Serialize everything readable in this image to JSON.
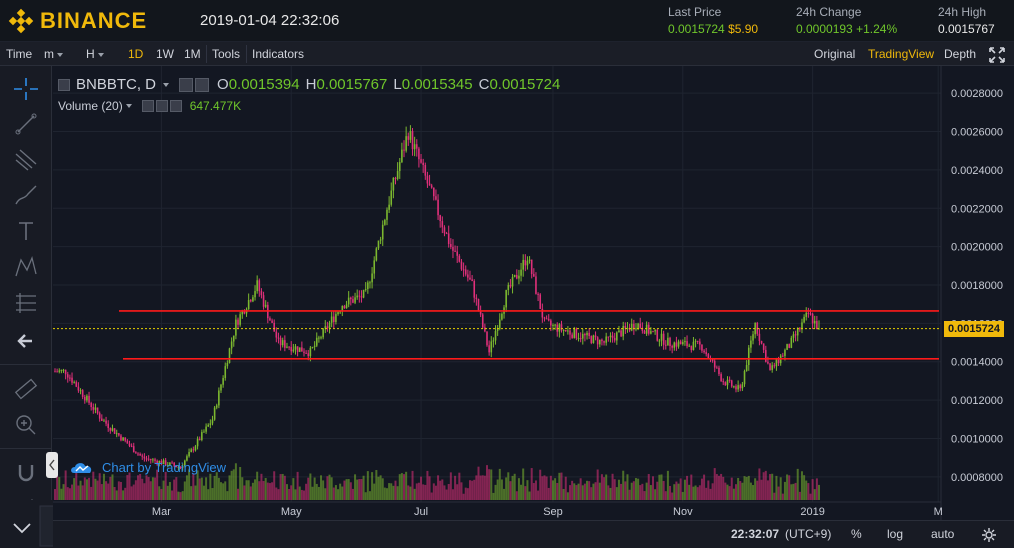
{
  "header": {
    "brand": "BINANCE",
    "datetime": "2019-01-04 22:32:06",
    "last_price_label": "Last Price",
    "last_price_value": "0.0015724",
    "last_price_usd": "$5.90",
    "change_label": "24h Change",
    "change_value": "0.0000193",
    "change_pct": "+1.24%",
    "high_label": "24h High",
    "high_value": "0.0015767"
  },
  "toolbar": {
    "time": "Time",
    "minute": "m",
    "hour": "H",
    "d1": "1D",
    "w1": "1W",
    "m1": "1M",
    "tools": "Tools",
    "indicators": "Indicators",
    "original": "Original",
    "tradingview": "TradingView",
    "depth": "Depth"
  },
  "legend": {
    "symbol": "BNBBTC, D",
    "o_label": "O",
    "o_value": "0.0015394",
    "h_label": "H",
    "h_value": "0.0015767",
    "l_label": "L",
    "l_value": "0.0015345",
    "c_label": "C",
    "c_value": "0.0015724",
    "volume_label": "Volume (20)",
    "volume_value": "647.477K",
    "watermark": "Chart by TradingView"
  },
  "bottom": {
    "time": "22:32:07",
    "tz": "(UTC+9)",
    "percent": "%",
    "log": "log",
    "auto": "auto"
  },
  "colors": {
    "up": "#7cb82f",
    "down": "#e0307a",
    "support_lines": "#ff1a1a",
    "last_price_line": "#e6d200",
    "accent": "#f0b90b"
  },
  "chart_data": {
    "type": "candlestick",
    "symbol": "BNBBTC",
    "interval": "D",
    "y_ticks": [
      "0.0028000",
      "0.0026000",
      "0.0024000",
      "0.0022000",
      "0.0020000",
      "0.0018000",
      "0.0016000",
      "0.0014000",
      "0.0012000",
      "0.0010000",
      "0.0008000"
    ],
    "ylim": [
      0.0007,
      0.0029
    ],
    "x_ticks": [
      "Mar",
      "May",
      "Jul",
      "Sep",
      "Nov",
      "2019",
      "M"
    ],
    "last_price": "0.0015724",
    "horizontal_lines": [
      0.001665,
      0.001415
    ],
    "key_points": [
      {
        "date": "2018-01-15",
        "close": 0.00135
      },
      {
        "date": "2018-02-01",
        "close": 0.0011
      },
      {
        "date": "2018-02-20",
        "close": 0.0009
      },
      {
        "date": "2018-03-10",
        "close": 0.00085
      },
      {
        "date": "2018-03-25",
        "close": 0.0011
      },
      {
        "date": "2018-04-05",
        "close": 0.0016
      },
      {
        "date": "2018-04-15",
        "close": 0.0018
      },
      {
        "date": "2018-04-25",
        "close": 0.0015
      },
      {
        "date": "2018-05-10",
        "close": 0.00145
      },
      {
        "date": "2018-05-25",
        "close": 0.0017
      },
      {
        "date": "2018-06-05",
        "close": 0.00175
      },
      {
        "date": "2018-06-15",
        "close": 0.0022
      },
      {
        "date": "2018-06-25",
        "close": 0.0026
      },
      {
        "date": "2018-07-05",
        "close": 0.0023
      },
      {
        "date": "2018-07-15",
        "close": 0.002
      },
      {
        "date": "2018-07-25",
        "close": 0.0018
      },
      {
        "date": "2018-08-02",
        "close": 0.00145
      },
      {
        "date": "2018-08-10",
        "close": 0.00175
      },
      {
        "date": "2018-08-20",
        "close": 0.00195
      },
      {
        "date": "2018-08-28",
        "close": 0.0016
      },
      {
        "date": "2018-09-10",
        "close": 0.00155
      },
      {
        "date": "2018-09-25",
        "close": 0.0015
      },
      {
        "date": "2018-10-10",
        "close": 0.0016
      },
      {
        "date": "2018-10-25",
        "close": 0.0015
      },
      {
        "date": "2018-11-10",
        "close": 0.00148
      },
      {
        "date": "2018-11-20",
        "close": 0.0013
      },
      {
        "date": "2018-11-28",
        "close": 0.00125
      },
      {
        "date": "2018-12-05",
        "close": 0.0016
      },
      {
        "date": "2018-12-12",
        "close": 0.00135
      },
      {
        "date": "2018-12-22",
        "close": 0.0015
      },
      {
        "date": "2018-12-30",
        "close": 0.00165
      },
      {
        "date": "2019-01-04",
        "close": 0.0015724
      }
    ]
  }
}
